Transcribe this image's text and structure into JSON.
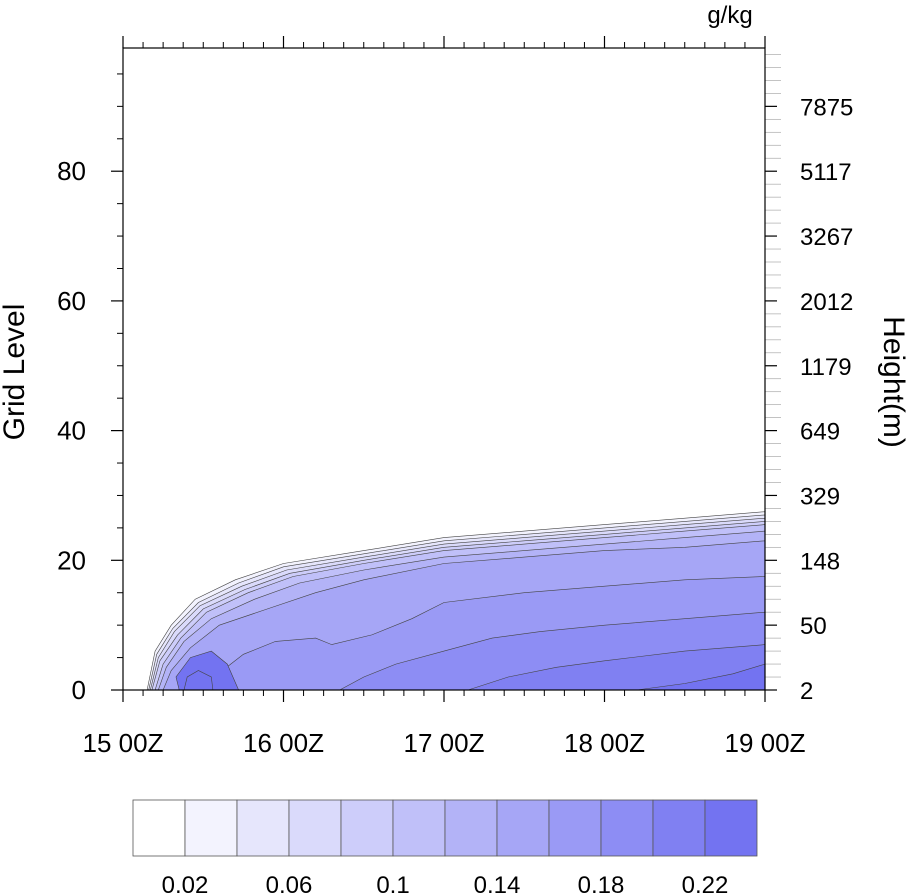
{
  "chart_data": {
    "type": "area",
    "units_label": "g/kg",
    "ylabel_left": "Grid Level",
    "ylabel_right": "Height(m)",
    "x_ticks": [
      "15 00Z",
      "16 00Z",
      "17 00Z",
      "18 00Z",
      "19 00Z"
    ],
    "x_range_days": [
      15,
      19
    ],
    "y_ticks": [
      0,
      20,
      40,
      60,
      80
    ],
    "ylim": [
      0,
      99
    ],
    "height_ticks": [
      {
        "level": 0,
        "label": "2"
      },
      {
        "level": 10,
        "label": "50"
      },
      {
        "level": 20,
        "label": "148"
      },
      {
        "level": 30,
        "label": "329"
      },
      {
        "level": 40,
        "label": "649"
      },
      {
        "level": 50,
        "label": "1179"
      },
      {
        "level": 60,
        "label": "2012"
      },
      {
        "level": 70,
        "label": "3267"
      },
      {
        "level": 80,
        "label": "5117"
      },
      {
        "level": 90,
        "label": "7875"
      }
    ],
    "colorbar": {
      "labels": [
        "0.02",
        "0.06",
        "0.1",
        "0.14",
        "0.18",
        "0.22"
      ],
      "colors": [
        "#ffffff",
        "#f3f3fe",
        "#e6e6fc",
        "#dadafb",
        "#cdcdfa",
        "#c0c0f9",
        "#b3b3f7",
        "#a6a6f6",
        "#9a9af5",
        "#8d8df4",
        "#8080f2",
        "#7373f1"
      ]
    },
    "series": [
      {
        "values": [
          [
            15.15,
            0
          ],
          [
            15.2,
            6
          ],
          [
            15.3,
            10
          ],
          [
            15.45,
            14
          ],
          [
            15.7,
            17
          ],
          [
            16.0,
            19.5
          ],
          [
            16.5,
            21.5
          ],
          [
            17.0,
            23.5
          ],
          [
            17.5,
            24.5
          ],
          [
            18.0,
            25.5
          ],
          [
            18.5,
            26.5
          ],
          [
            19.0,
            27.5
          ]
        ]
      },
      {
        "values": [
          [
            15.16,
            0
          ],
          [
            15.21,
            5.5
          ],
          [
            15.31,
            9.5
          ],
          [
            15.47,
            13.5
          ],
          [
            15.72,
            16.5
          ],
          [
            16.0,
            19
          ],
          [
            16.5,
            21
          ],
          [
            17.0,
            23
          ],
          [
            17.5,
            24
          ],
          [
            18.0,
            25
          ],
          [
            18.5,
            26
          ],
          [
            19.0,
            27
          ]
        ]
      },
      {
        "values": [
          [
            15.17,
            0
          ],
          [
            15.22,
            5
          ],
          [
            15.32,
            9
          ],
          [
            15.48,
            13
          ],
          [
            15.74,
            16
          ],
          [
            16.02,
            18.5
          ],
          [
            16.5,
            20.5
          ],
          [
            17.0,
            22.5
          ],
          [
            17.5,
            23.5
          ],
          [
            18.0,
            24.5
          ],
          [
            18.5,
            25.5
          ],
          [
            19.0,
            26.5
          ]
        ]
      },
      {
        "values": [
          [
            15.18,
            0
          ],
          [
            15.23,
            4.5
          ],
          [
            15.34,
            8.5
          ],
          [
            15.5,
            12.5
          ],
          [
            15.76,
            15.5
          ],
          [
            16.04,
            18
          ],
          [
            16.5,
            20
          ],
          [
            17.0,
            22
          ],
          [
            17.5,
            23
          ],
          [
            18.0,
            24
          ],
          [
            18.5,
            25
          ],
          [
            19.0,
            26
          ]
        ]
      },
      {
        "values": [
          [
            15.2,
            0
          ],
          [
            15.25,
            4
          ],
          [
            15.36,
            8
          ],
          [
            15.52,
            12
          ],
          [
            15.78,
            15
          ],
          [
            16.06,
            17.5
          ],
          [
            16.5,
            19.5
          ],
          [
            17.0,
            21.5
          ],
          [
            17.5,
            22.5
          ],
          [
            18.0,
            23.5
          ],
          [
            18.5,
            24.5
          ],
          [
            19.0,
            25.5
          ]
        ]
      },
      {
        "values": [
          [
            15.22,
            0
          ],
          [
            15.27,
            3.5
          ],
          [
            15.38,
            7.5
          ],
          [
            15.55,
            11
          ],
          [
            15.82,
            14
          ],
          [
            16.1,
            16.5
          ],
          [
            16.5,
            18.5
          ],
          [
            17.0,
            20.5
          ],
          [
            17.5,
            21.5
          ],
          [
            18.0,
            22.5
          ],
          [
            18.5,
            23.5
          ],
          [
            19.0,
            24.5
          ]
        ]
      },
      {
        "values": [
          [
            15.25,
            0
          ],
          [
            15.3,
            3
          ],
          [
            15.42,
            6.5
          ],
          [
            15.6,
            10
          ],
          [
            15.9,
            12.5
          ],
          [
            16.2,
            15
          ],
          [
            16.5,
            17
          ],
          [
            17.0,
            19.5
          ],
          [
            17.5,
            20.5
          ],
          [
            18.0,
            21.5
          ],
          [
            18.5,
            22
          ],
          [
            19.0,
            23
          ]
        ]
      },
      {
        "values": [
          [
            15.55,
            0
          ],
          [
            15.62,
            3
          ],
          [
            15.75,
            5.5
          ],
          [
            15.95,
            7.5
          ],
          [
            16.2,
            8
          ],
          [
            16.3,
            7
          ],
          [
            16.55,
            8.5
          ],
          [
            16.8,
            11
          ],
          [
            17.0,
            13.5
          ],
          [
            17.5,
            15
          ],
          [
            18.0,
            16
          ],
          [
            18.5,
            17
          ],
          [
            19.0,
            17.5
          ]
        ]
      },
      {
        "values": [
          [
            16.35,
            0
          ],
          [
            16.5,
            2
          ],
          [
            16.7,
            4
          ],
          [
            17.0,
            6
          ],
          [
            17.3,
            8
          ],
          [
            17.6,
            9
          ],
          [
            18.0,
            10
          ],
          [
            18.5,
            11
          ],
          [
            19.0,
            12
          ]
        ]
      },
      {
        "values": [
          [
            17.15,
            0
          ],
          [
            17.4,
            2
          ],
          [
            17.7,
            3.5
          ],
          [
            18.0,
            4.5
          ],
          [
            18.5,
            6
          ],
          [
            19.0,
            7
          ]
        ]
      },
      {
        "values": [
          [
            18.2,
            0
          ],
          [
            18.5,
            1
          ],
          [
            18.8,
            2.5
          ],
          [
            19.0,
            4
          ]
        ]
      }
    ],
    "core_regions": [
      {
        "values": [
          [
            15.35,
            0
          ],
          [
            15.33,
            2
          ],
          [
            15.42,
            5
          ],
          [
            15.55,
            6
          ],
          [
            15.65,
            4
          ],
          [
            15.72,
            0
          ]
        ]
      },
      {
        "values": [
          [
            15.38,
            0
          ],
          [
            15.4,
            2
          ],
          [
            15.47,
            3
          ],
          [
            15.55,
            2
          ],
          [
            15.56,
            0
          ]
        ]
      }
    ]
  }
}
